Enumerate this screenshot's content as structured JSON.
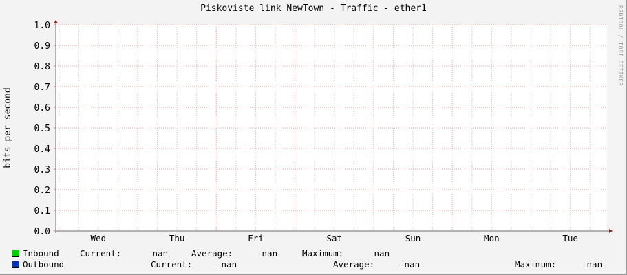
{
  "title": "Piskoviste link NewTown  - Traffic - ether1",
  "watermark": "RRDTOOL / TOBI OETIKER",
  "chart_data": {
    "type": "line",
    "title": "Piskoviste link NewTown  - Traffic - ether1",
    "ylabel": "bits per second",
    "xlabel": "",
    "ylim": [
      0,
      1.0
    ],
    "y_ticks": [
      "0.0",
      "0.1",
      "0.2",
      "0.3",
      "0.4",
      "0.5",
      "0.6",
      "0.7",
      "0.8",
      "0.9",
      "1.0"
    ],
    "x_ticks": [
      "Wed",
      "Thu",
      "Fri",
      "Sat",
      "Sun",
      "Mon",
      "Tue"
    ],
    "grid": true,
    "series": [
      {
        "name": "Inbound",
        "color": "#00cc00",
        "values": []
      },
      {
        "name": "Outbound",
        "color": "#0033aa",
        "values": []
      }
    ]
  },
  "legend": [
    {
      "name": "Inbound",
      "color": "#00cc00",
      "current_label": "Current:",
      "current": "-nan",
      "average_label": "Average:",
      "average": "-nan",
      "maximum_label": "Maximum:",
      "maximum": "-nan"
    },
    {
      "name": "Outbound",
      "color": "#0033aa",
      "current_label": "Current:",
      "current": "-nan",
      "average_label": "Average:",
      "average": "-nan",
      "maximum_label": "Maximum:",
      "maximum": "-nan"
    }
  ]
}
